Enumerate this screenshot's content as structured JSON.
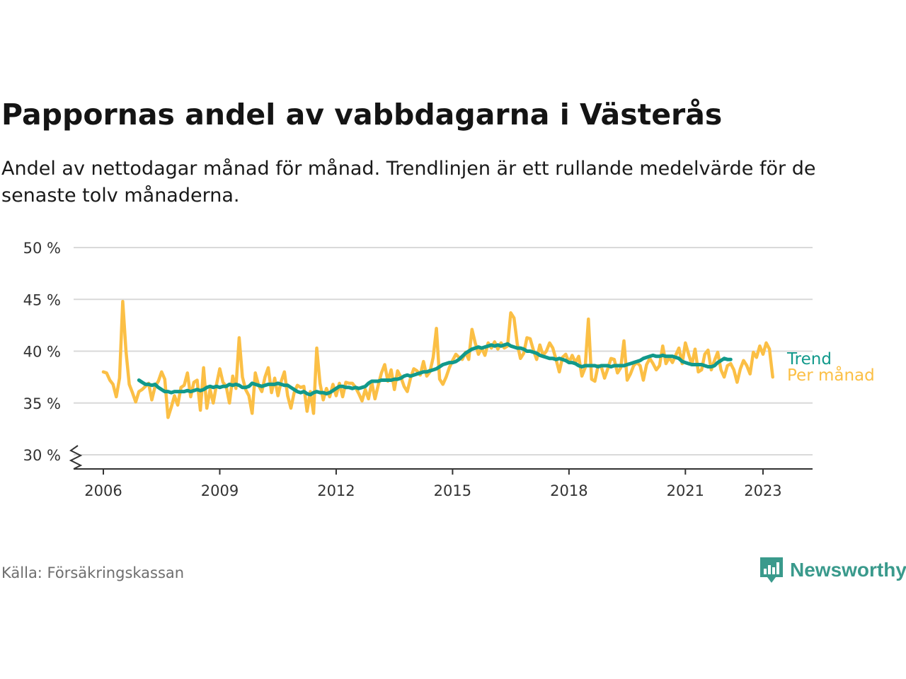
{
  "header": {
    "title": "Pappornas andel av vabbdagarna i Västerås",
    "subtitle": "Andel av nettodagar månad för månad. Trendlinjen är ett rullande medelvärde för de senaste tolv månaderna."
  },
  "footer": {
    "source": "Källa: Försäkringskassan",
    "brand": "Newsworthy"
  },
  "colors": {
    "monthly": "#fbbf45",
    "trend": "#11998b",
    "grid": "#d9d9d9",
    "axis": "#333333",
    "brand": "#3a9a8c"
  },
  "icons": {
    "brand_logo": "newsworthy-bar-chart-icon",
    "axis_break": "zigzag-break-icon"
  },
  "chart_data": {
    "type": "line",
    "title": "Pappornas andel av vabbdagarna i Västerås",
    "xlabel": "",
    "ylabel": "",
    "x_ticks": [
      "2006",
      "2009",
      "2012",
      "2015",
      "2018",
      "2021",
      "2023"
    ],
    "x_tick_values": [
      2006,
      2009,
      2012,
      2015,
      2018,
      2021,
      2023
    ],
    "y_ticks": [
      "30 %",
      "35 %",
      "40 %",
      "45 %",
      "50 %"
    ],
    "y_tick_values": [
      30,
      35,
      40,
      45,
      50
    ],
    "ylim": [
      30,
      50
    ],
    "y_axis_break": true,
    "grid": true,
    "x_start": "2006-01",
    "series": [
      {
        "name": "Per månad",
        "start": "2006-01",
        "values": [
          38.0,
          37.9,
          37.2,
          36.8,
          35.6,
          37.4,
          44.8,
          40.0,
          36.8,
          36.0,
          35.1,
          36.1,
          36.3,
          36.6,
          36.9,
          35.3,
          36.6,
          37.1,
          38.0,
          37.3,
          33.6,
          34.6,
          35.7,
          34.8,
          36.5,
          36.7,
          37.9,
          35.6,
          37.0,
          37.2,
          34.3,
          38.4,
          34.5,
          36.3,
          35.0,
          36.8,
          38.3,
          37.0,
          36.6,
          35.0,
          37.6,
          36.4,
          41.3,
          37.5,
          36.3,
          35.7,
          34.0,
          37.9,
          36.7,
          36.1,
          37.5,
          38.4,
          36.0,
          37.4,
          35.7,
          37.1,
          38.0,
          35.7,
          34.5,
          36.0,
          36.7,
          36.5,
          36.6,
          34.2,
          36.1,
          34.0,
          40.3,
          36.9,
          35.3,
          36.4,
          35.6,
          36.8,
          35.7,
          36.9,
          35.6,
          37.0,
          36.9,
          36.9,
          36.5,
          35.9,
          35.2,
          36.3,
          35.4,
          37.0,
          35.4,
          36.7,
          37.9,
          38.7,
          37.1,
          38.2,
          36.3,
          38.1,
          37.5,
          36.6,
          36.1,
          37.4,
          38.3,
          38.1,
          37.7,
          39.0,
          37.6,
          38.0,
          39.4,
          42.2,
          37.3,
          36.8,
          37.5,
          38.4,
          39.1,
          39.7,
          39.4,
          39.2,
          39.9,
          39.2,
          42.1,
          40.8,
          39.7,
          40.3,
          39.6,
          40.8,
          40.3,
          40.9,
          40.2,
          40.8,
          40.3,
          40.5,
          43.7,
          43.2,
          40.7,
          39.3,
          39.8,
          41.3,
          41.2,
          40.1,
          39.2,
          40.6,
          39.6,
          40.0,
          40.8,
          40.3,
          39.2,
          38.0,
          39.4,
          39.7,
          38.9,
          39.6,
          38.9,
          39.5,
          37.6,
          38.4,
          43.1,
          37.3,
          37.1,
          38.6,
          38.5,
          37.4,
          38.3,
          39.3,
          39.2,
          37.9,
          38.4,
          41.0,
          37.2,
          37.8,
          38.6,
          38.9,
          38.6,
          37.2,
          38.7,
          39.3,
          38.8,
          38.2,
          38.6,
          40.5,
          38.8,
          39.4,
          38.9,
          39.6,
          40.3,
          38.8,
          40.8,
          39.7,
          38.7,
          40.2,
          38.0,
          38.2,
          39.7,
          40.1,
          38.2,
          39.1,
          39.9,
          38.2,
          37.5,
          38.6,
          38.8,
          38.2,
          37.0,
          38.3,
          39.1,
          38.6,
          37.8,
          39.9,
          39.4,
          40.5,
          39.7,
          40.8,
          40.2,
          37.5
        ]
      },
      {
        "name": "Trend",
        "start": "2006-12",
        "values": [
          37.2,
          37.0,
          36.8,
          36.8,
          36.7,
          36.8,
          36.5,
          36.3,
          36.1,
          36.1,
          36.0,
          36.1,
          36.1,
          36.1,
          36.1,
          36.2,
          36.1,
          36.2,
          36.3,
          36.2,
          36.3,
          36.5,
          36.6,
          36.5,
          36.6,
          36.5,
          36.6,
          36.6,
          36.8,
          36.7,
          36.8,
          36.7,
          36.5,
          36.5,
          36.6,
          36.9,
          36.8,
          36.7,
          36.6,
          36.7,
          36.8,
          36.8,
          36.8,
          36.9,
          36.8,
          36.7,
          36.7,
          36.5,
          36.3,
          36.1,
          36.0,
          36.1,
          35.9,
          35.8,
          36.0,
          36.1,
          36.0,
          36.0,
          35.9,
          36.0,
          36.2,
          36.4,
          36.6,
          36.6,
          36.5,
          36.5,
          36.4,
          36.5,
          36.4,
          36.5,
          36.6,
          36.9,
          37.1,
          37.1,
          37.1,
          37.2,
          37.2,
          37.2,
          37.2,
          37.3,
          37.3,
          37.4,
          37.6,
          37.7,
          37.6,
          37.7,
          37.8,
          37.9,
          38.0,
          38.0,
          38.1,
          38.2,
          38.3,
          38.5,
          38.7,
          38.8,
          38.9,
          38.9,
          39.0,
          39.2,
          39.5,
          39.8,
          40.0,
          40.2,
          40.3,
          40.4,
          40.3,
          40.4,
          40.5,
          40.6,
          40.5,
          40.6,
          40.5,
          40.6,
          40.7,
          40.5,
          40.4,
          40.3,
          40.3,
          40.2,
          40.0,
          40.0,
          39.9,
          39.8,
          39.6,
          39.5,
          39.4,
          39.3,
          39.3,
          39.2,
          39.3,
          39.2,
          39.1,
          38.9,
          38.9,
          38.8,
          38.6,
          38.5,
          38.6,
          38.6,
          38.6,
          38.6,
          38.5,
          38.6,
          38.6,
          38.6,
          38.5,
          38.6,
          38.6,
          38.6,
          38.6,
          38.7,
          38.8,
          38.9,
          39.0,
          39.1,
          39.3,
          39.4,
          39.5,
          39.6,
          39.5,
          39.5,
          39.6,
          39.5,
          39.5,
          39.5,
          39.4,
          39.3,
          39.0,
          38.9,
          38.8,
          38.7,
          38.7,
          38.7,
          38.7,
          38.6,
          38.5,
          38.5,
          38.6,
          38.9,
          39.1,
          39.3,
          39.2,
          39.2
        ]
      }
    ],
    "legend": [
      {
        "label": "Trend",
        "placement": "right of line end"
      },
      {
        "label": "Per månad",
        "placement": "right of line end"
      }
    ]
  }
}
